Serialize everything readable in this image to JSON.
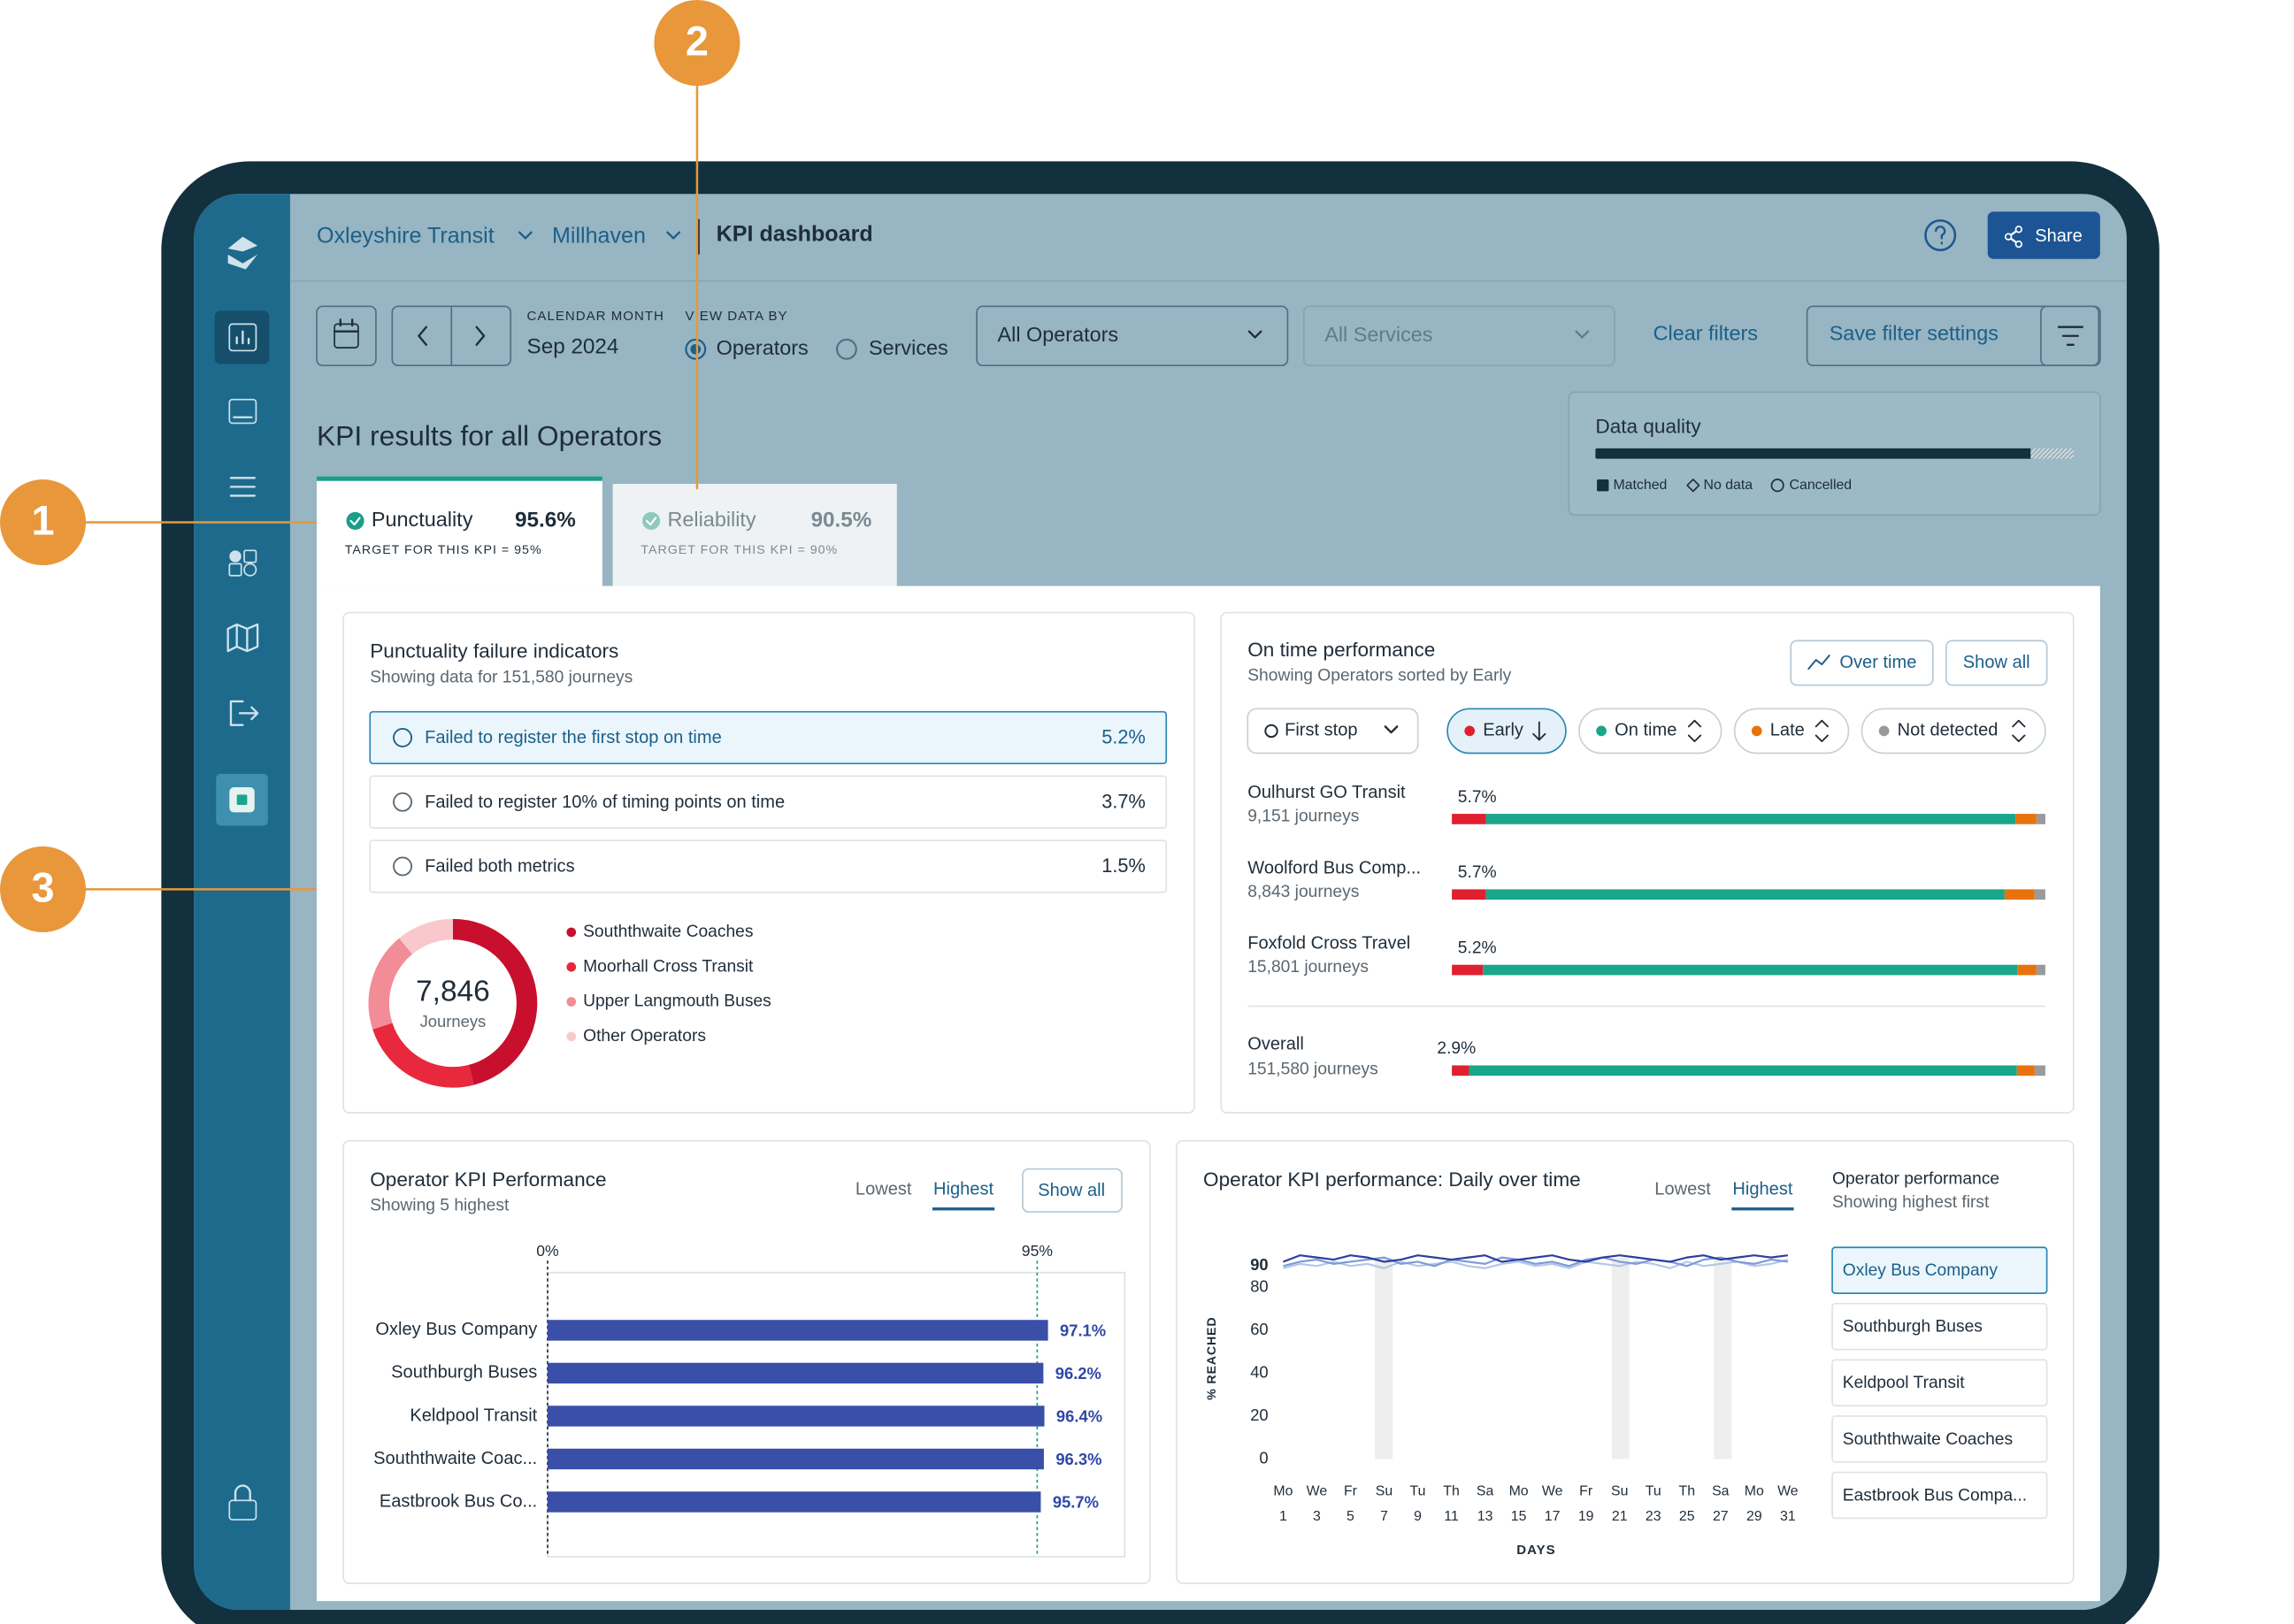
{
  "callouts": [
    "1",
    "2",
    "3"
  ],
  "nav": {
    "org": "Oxleyshire Transit",
    "region": "Millhaven",
    "page": "KPI dashboard",
    "share": "Share"
  },
  "filters": {
    "month_label": "CALENDAR MONTH",
    "month": "Sep 2024",
    "view_label": "VIEW DATA BY",
    "view_options": [
      "Operators",
      "Services"
    ],
    "operators": "All Operators",
    "services": "All Services",
    "clear": "Clear filters",
    "save": "Save filter settings"
  },
  "heading": "KPI results for all Operators",
  "data_quality": {
    "title": "Data quality",
    "legend": [
      "Matched",
      "No data",
      "Cancelled"
    ]
  },
  "kpi_tabs": [
    {
      "name": "Punctuality",
      "value": "95.6%",
      "target": "TARGET FOR THIS KPI = 95%"
    },
    {
      "name": "Reliability",
      "value": "90.5%",
      "target": "TARGET FOR THIS KPI = 90%"
    }
  ],
  "failure_indicators": {
    "title": "Punctuality failure indicators",
    "subtitle": "Showing data for 151,580 journeys",
    "items": [
      {
        "label": "Failed to register the first stop on time",
        "value": "5.2%"
      },
      {
        "label": "Failed to register 10% of timing points on time",
        "value": "3.7%"
      },
      {
        "label": "Failed both metrics",
        "value": "1.5%"
      }
    ],
    "donut": {
      "total": "7,846",
      "unit": "Journeys",
      "segments": [
        {
          "name": "Souththwaite Coaches",
          "color": "#c8102e",
          "value": 46
        },
        {
          "name": "Moorhall Cross Transit",
          "color": "#e8283c",
          "value": 24
        },
        {
          "name": "Upper Langmouth Buses",
          "color": "#f28c96",
          "value": 19
        },
        {
          "name": "Other Operators",
          "color": "#f9c8cd",
          "value": 11
        }
      ]
    }
  },
  "on_time": {
    "title": "On time performance",
    "subtitle": "Showing Operators sorted by Early",
    "buttons": [
      "Over time",
      "Show all"
    ],
    "filters": [
      "First stop",
      "Early",
      "On time",
      "Late",
      "Not detected"
    ],
    "segment_colors": [
      "#e0202e",
      "#1aa68a",
      "#e8720c",
      "#9a9a9a"
    ],
    "rows": [
      {
        "name": "Oulhurst GO Transit",
        "journeys": "9,151 journeys",
        "values": [
          5.7,
          88.8,
          3.5,
          1.5
        ],
        "value_label": "5.7%"
      },
      {
        "name": "Woolford Bus Comp...",
        "journeys": "8,843 journeys",
        "values": [
          5.7,
          86.5,
          5,
          1.8
        ],
        "value_label": "5.7%"
      },
      {
        "name": "Foxfold Cross Travel",
        "journeys": "15,801 journeys",
        "values": [
          5.2,
          89.6,
          3.2,
          1.5
        ],
        "value_label": "5.2%"
      }
    ],
    "overall": {
      "name": "Overall",
      "journeys": "151,580 journeys",
      "values": [
        2.9,
        92.3,
        3,
        1.8
      ],
      "value_label": "2.9%"
    }
  },
  "operator_kpi": {
    "title": "Operator KPI Performance",
    "subtitle": "Showing 5 highest",
    "toggles": [
      "Lowest",
      "Highest"
    ],
    "show_all": "Show all",
    "type": "bar",
    "xlim": [
      0,
      112
    ],
    "xticks": [
      {
        "value": 0,
        "label": "0%"
      },
      {
        "value": 95,
        "label": "95%"
      }
    ],
    "categories": [
      "Oxley Bus Company",
      "Southburgh Buses",
      "Keldpool Transit",
      "Souththwaite Coac...",
      "Eastbrook Bus Co..."
    ],
    "values": [
      97.1,
      96.2,
      96.4,
      96.3,
      95.7
    ],
    "value_labels": [
      "97.1%",
      "96.2%",
      "96.4%",
      "96.3%",
      "95.7%"
    ],
    "color": "#3a4fa8"
  },
  "daily": {
    "title": "Operator KPI performance: Daily over time",
    "toggles": [
      "Lowest",
      "Highest"
    ],
    "type": "line",
    "ylabel": "% REACHED",
    "xlabel": "DAYS",
    "ylim": [
      0,
      98
    ],
    "yticks": [
      0,
      20,
      40,
      60,
      80,
      90
    ],
    "xlim": [
      1,
      31
    ],
    "xticks": [
      1,
      3,
      5,
      7,
      9,
      11,
      13,
      15,
      17,
      19,
      21,
      23,
      25,
      27,
      29,
      31
    ],
    "xtick_days": [
      "Mo",
      "We",
      "Fr",
      "Su",
      "Tu",
      "Th",
      "Sa",
      "Mo",
      "We",
      "Fr",
      "Su",
      "Tu",
      "Th",
      "Sa",
      "Mo",
      "We"
    ],
    "x": [
      1,
      2,
      3,
      4,
      5,
      6,
      7,
      8,
      9,
      10,
      11,
      12,
      13,
      14,
      15,
      16,
      17,
      18,
      19,
      20,
      21,
      22,
      23,
      24,
      25,
      26,
      27,
      28,
      29,
      30,
      31
    ],
    "series": [
      {
        "color": "#2b3f9e",
        "values": [
          92,
          95,
          94,
          93,
          95,
          94,
          92,
          93,
          95,
          94,
          93,
          94,
          95,
          92,
          93,
          94,
          95,
          93,
          92,
          94,
          95,
          94,
          93,
          92,
          94,
          95,
          93,
          94,
          95,
          94,
          95
        ]
      },
      {
        "color": "#7f9bd6",
        "values": [
          90,
          92,
          93,
          91,
          92,
          93,
          94,
          91,
          92,
          90,
          93,
          92,
          91,
          94,
          93,
          91,
          92,
          90,
          93,
          94,
          92,
          91,
          93,
          92,
          90,
          93,
          94,
          92,
          91,
          93,
          92
        ]
      },
      {
        "color": "#b7c6e8",
        "values": [
          89,
          91,
          90,
          92,
          90,
          91,
          89,
          92,
          90,
          91,
          92,
          90,
          89,
          91,
          92,
          90,
          91,
          89,
          92,
          91,
          90,
          92,
          91,
          89,
          92,
          90,
          91,
          92,
          90,
          91,
          93
        ]
      }
    ],
    "side_title": "Operator performance",
    "side_subtitle": "Showing highest first",
    "operators": [
      "Oxley Bus Company",
      "Southburgh Buses",
      "Keldpool Transit",
      "Souththwaite Coaches",
      "Eastbrook Bus Compa..."
    ]
  }
}
